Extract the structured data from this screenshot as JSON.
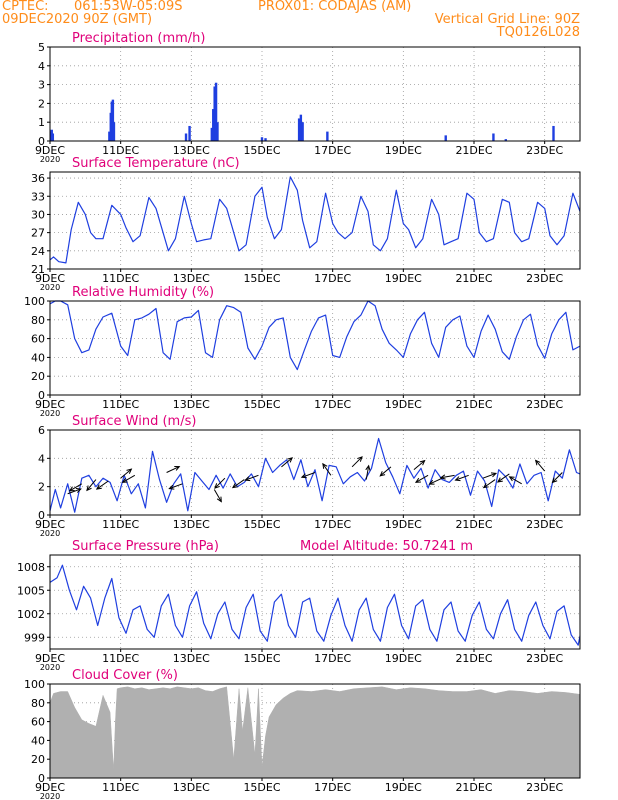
{
  "header": {
    "line1_left": "CPTEC:",
    "line1_mid": "061:53W-05:09S",
    "line1_right": "PROX01: CODAJAS (AM)",
    "line2_left": "09DEC2020 90Z (GMT)",
    "line2_right": "Vertical Grid Line: 90Z",
    "line3_right": "TQ0126L028"
  },
  "colors": {
    "header_text": "#ff8c1a",
    "panel_title": "#e0007a",
    "series": "#1f3fe0",
    "cloud": "#b0b0b0",
    "wind_vector": "#000000",
    "grid": "#999999"
  },
  "x_axis": {
    "ticks": [
      "9DEC",
      "11DEC",
      "13DEC",
      "15DEC",
      "17DEC",
      "19DEC",
      "21DEC",
      "23DEC"
    ],
    "tick_days": [
      0,
      2,
      4,
      6,
      8,
      10,
      12,
      14
    ],
    "start_year_label": "2020",
    "range_days": [
      0,
      15
    ]
  },
  "chart_data": [
    {
      "id": "precip",
      "type": "bar",
      "title": "Precipitation (mm/h)",
      "ylim": [
        0,
        5
      ],
      "yticks": [
        0,
        1,
        2,
        3,
        4,
        5
      ],
      "grid": true,
      "x_unit": "days since 09DEC2020 00Z",
      "x": [
        0.02,
        0.05,
        0.08,
        1.68,
        1.72,
        1.75,
        1.78,
        1.81,
        3.85,
        3.95,
        4.58,
        4.62,
        4.66,
        4.7,
        4.74,
        6.0,
        6.1,
        7.05,
        7.1,
        7.15,
        7.85,
        11.2,
        12.55,
        12.9,
        14.25
      ],
      "values": [
        0.5,
        0.6,
        0.4,
        0.5,
        1.5,
        2.1,
        2.2,
        1.0,
        0.4,
        0.8,
        0.7,
        1.7,
        2.9,
        3.1,
        1.0,
        0.2,
        0.15,
        1.2,
        1.4,
        1.0,
        0.5,
        0.3,
        0.4,
        0.1,
        0.8
      ]
    },
    {
      "id": "temp",
      "type": "line",
      "title": "Surface Temperature (nC)",
      "ylim": [
        21,
        37
      ],
      "yticks": [
        21,
        24,
        27,
        30,
        33,
        36
      ],
      "grid": true,
      "x": [
        0,
        0.1,
        0.25,
        0.45,
        0.6,
        0.8,
        1.0,
        1.15,
        1.3,
        1.5,
        1.75,
        2.0,
        2.15,
        2.35,
        2.55,
        2.8,
        3.0,
        3.15,
        3.35,
        3.55,
        3.8,
        4.0,
        4.15,
        4.35,
        4.55,
        4.8,
        5.0,
        5.15,
        5.35,
        5.55,
        5.8,
        6.0,
        6.15,
        6.35,
        6.55,
        6.8,
        7.0,
        7.15,
        7.35,
        7.55,
        7.8,
        8.0,
        8.15,
        8.35,
        8.55,
        8.8,
        9.0,
        9.15,
        9.35,
        9.55,
        9.8,
        10.0,
        10.15,
        10.35,
        10.55,
        10.8,
        11.0,
        11.15,
        11.35,
        11.55,
        11.8,
        12.0,
        12.15,
        12.35,
        12.55,
        12.8,
        13.0,
        13.15,
        13.35,
        13.55,
        13.8,
        14.0,
        14.15,
        14.35,
        14.55,
        14.8,
        15.0
      ],
      "values": [
        22.5,
        23.0,
        22.2,
        22.0,
        27.5,
        32.0,
        30.0,
        27.0,
        26.0,
        26.0,
        31.5,
        30.0,
        27.8,
        25.5,
        26.5,
        32.8,
        31.0,
        28.0,
        24.0,
        26.0,
        33.0,
        28.5,
        25.5,
        25.8,
        26.0,
        32.5,
        31.0,
        28.0,
        24.0,
        25.0,
        33.0,
        34.5,
        29.5,
        26.0,
        27.5,
        36.2,
        34.0,
        29.0,
        24.5,
        25.5,
        33.5,
        28.5,
        27.0,
        26.0,
        27.0,
        33.0,
        30.5,
        25.0,
        24.0,
        26.0,
        34.0,
        28.5,
        27.5,
        24.5,
        26.0,
        32.5,
        30.0,
        25.0,
        25.5,
        26.0,
        33.5,
        32.5,
        27.0,
        25.5,
        26.0,
        32.5,
        32.0,
        27.0,
        25.5,
        26.0,
        32.0,
        31.0,
        26.5,
        25.0,
        26.5,
        33.5,
        30.5
      ]
    },
    {
      "id": "rh",
      "type": "line",
      "title": "Relative Humidity (%)",
      "ylim": [
        0,
        100
      ],
      "yticks": [
        0,
        20,
        40,
        60,
        80,
        100
      ],
      "grid": true,
      "x": [
        0,
        0.15,
        0.3,
        0.5,
        0.7,
        0.9,
        1.1,
        1.3,
        1.5,
        1.75,
        2.0,
        2.2,
        2.4,
        2.6,
        2.8,
        3.0,
        3.2,
        3.4,
        3.6,
        3.8,
        4.0,
        4.2,
        4.4,
        4.6,
        4.8,
        5.0,
        5.2,
        5.4,
        5.6,
        5.8,
        6.0,
        6.2,
        6.4,
        6.6,
        6.8,
        7.0,
        7.2,
        7.4,
        7.6,
        7.8,
        8.0,
        8.2,
        8.4,
        8.6,
        8.8,
        9.0,
        9.2,
        9.4,
        9.6,
        9.8,
        10.0,
        10.2,
        10.4,
        10.6,
        10.8,
        11.0,
        11.2,
        11.4,
        11.6,
        11.8,
        12.0,
        12.2,
        12.4,
        12.6,
        12.8,
        13.0,
        13.2,
        13.4,
        13.6,
        13.8,
        14.0,
        14.2,
        14.4,
        14.6,
        14.8,
        15.0
      ],
      "values": [
        97,
        100,
        100,
        96,
        60,
        45,
        48,
        70,
        83,
        87,
        52,
        42,
        80,
        82,
        86,
        92,
        45,
        38,
        78,
        82,
        83,
        90,
        45,
        40,
        80,
        95,
        93,
        88,
        50,
        38,
        52,
        72,
        80,
        82,
        40,
        27,
        48,
        68,
        82,
        85,
        42,
        40,
        62,
        78,
        85,
        100,
        95,
        70,
        55,
        48,
        40,
        65,
        80,
        88,
        55,
        40,
        72,
        80,
        84,
        52,
        40,
        68,
        85,
        70,
        46,
        38,
        62,
        80,
        86,
        53,
        39,
        65,
        80,
        88,
        48,
        52
      ]
    },
    {
      "id": "wind",
      "type": "line",
      "title": "Surface Wind (m/s)",
      "ylim": [
        0,
        6
      ],
      "yticks": [
        0,
        2,
        4,
        6
      ],
      "grid": true,
      "x": [
        0,
        0.15,
        0.3,
        0.5,
        0.7,
        0.9,
        1.1,
        1.3,
        1.5,
        1.7,
        1.9,
        2.1,
        2.3,
        2.5,
        2.7,
        2.9,
        3.1,
        3.3,
        3.5,
        3.7,
        3.9,
        4.1,
        4.3,
        4.5,
        4.7,
        4.9,
        5.1,
        5.3,
        5.5,
        5.7,
        5.9,
        6.1,
        6.3,
        6.5,
        6.7,
        6.9,
        7.1,
        7.3,
        7.5,
        7.7,
        7.9,
        8.1,
        8.3,
        8.5,
        8.7,
        8.9,
        9.1,
        9.3,
        9.5,
        9.7,
        9.9,
        10.1,
        10.3,
        10.5,
        10.7,
        10.9,
        11.1,
        11.3,
        11.5,
        11.7,
        11.9,
        12.1,
        12.3,
        12.5,
        12.7,
        12.9,
        13.1,
        13.3,
        13.5,
        13.7,
        13.9,
        14.1,
        14.3,
        14.5,
        14.7,
        14.9,
        15.0
      ],
      "values": [
        0.3,
        1.8,
        0.5,
        2.2,
        0.2,
        2.6,
        2.8,
        2.0,
        2.6,
        2.3,
        1.0,
        2.8,
        1.5,
        2.2,
        0.5,
        4.5,
        2.5,
        0.9,
        2.2,
        2.9,
        0.3,
        3.0,
        2.4,
        1.8,
        2.8,
        1.9,
        2.9,
        2.0,
        2.3,
        2.9,
        2.0,
        4.0,
        3.0,
        3.5,
        3.9,
        2.5,
        3.9,
        2.0,
        3.2,
        1.0,
        3.5,
        3.4,
        2.2,
        2.7,
        3.0,
        2.4,
        3.3,
        5.4,
        3.7,
        2.7,
        1.5,
        3.5,
        2.6,
        3.3,
        1.9,
        3.2,
        2.5,
        2.3,
        2.8,
        3.1,
        1.4,
        3.1,
        2.4,
        0.6,
        3.2,
        2.7,
        1.9,
        3.6,
        2.2,
        2.8,
        3.0,
        1.0,
        3.1,
        2.6,
        4.6,
        3.0,
        2.9
      ]
    },
    {
      "id": "pres",
      "type": "line",
      "title": "Surface Pressure (hPa)",
      "title_right": "Model Altitude: 50.7241 m",
      "ylim": [
        997.5,
        1009.5
      ],
      "yticks": [
        999,
        1002,
        1005,
        1008
      ],
      "grid": true,
      "x": [
        0,
        0.2,
        0.35,
        0.55,
        0.75,
        0.95,
        1.15,
        1.35,
        1.55,
        1.75,
        1.95,
        2.15,
        2.35,
        2.55,
        2.75,
        2.95,
        3.15,
        3.35,
        3.55,
        3.75,
        3.95,
        4.15,
        4.35,
        4.55,
        4.75,
        4.95,
        5.15,
        5.35,
        5.55,
        5.75,
        5.95,
        6.15,
        6.35,
        6.55,
        6.75,
        6.95,
        7.15,
        7.35,
        7.55,
        7.75,
        7.95,
        8.15,
        8.35,
        8.55,
        8.75,
        8.95,
        9.15,
        9.35,
        9.55,
        9.75,
        9.95,
        10.15,
        10.35,
        10.55,
        10.75,
        10.95,
        11.15,
        11.35,
        11.55,
        11.75,
        11.95,
        12.15,
        12.35,
        12.55,
        12.75,
        12.95,
        13.15,
        13.35,
        13.55,
        13.75,
        13.95,
        14.15,
        14.35,
        14.55,
        14.75,
        14.95,
        15.0
      ],
      "values": [
        1006.0,
        1006.6,
        1008.2,
        1005.0,
        1002.5,
        1005.5,
        1004.0,
        1000.5,
        1004.0,
        1006.5,
        1001.5,
        999.5,
        1002.5,
        1003.0,
        1000.0,
        999.0,
        1003.0,
        1004.5,
        1000.5,
        999.0,
        1003.0,
        1004.8,
        1000.8,
        998.8,
        1002.0,
        1003.5,
        1000.0,
        998.8,
        1002.8,
        1004.5,
        999.8,
        998.5,
        1003.5,
        1004.5,
        1000.5,
        999.0,
        1003.5,
        1004.0,
        999.8,
        998.5,
        1001.8,
        1004.0,
        1000.5,
        998.5,
        1002.5,
        1004.0,
        1000.0,
        998.5,
        1002.8,
        1004.5,
        1000.5,
        998.8,
        1003.0,
        1003.8,
        1000.0,
        998.5,
        1002.5,
        1003.5,
        999.8,
        998.5,
        1001.8,
        1003.5,
        1000.0,
        998.8,
        1002.0,
        1003.8,
        1000.0,
        998.5,
        1001.8,
        1003.5,
        1000.5,
        998.8,
        1002.3,
        1003.0,
        999.3,
        998.0,
        999.2
      ]
    },
    {
      "id": "cloud",
      "type": "area",
      "title": "Cloud Cover (%)",
      "ylim": [
        0,
        100
      ],
      "yticks": [
        0,
        20,
        40,
        60,
        80,
        100
      ],
      "grid": true,
      "x": [
        0,
        0.1,
        0.3,
        0.5,
        0.7,
        0.9,
        1.1,
        1.3,
        1.5,
        1.7,
        1.8,
        1.85,
        1.9,
        2.0,
        2.2,
        2.4,
        2.6,
        2.8,
        3.0,
        3.2,
        3.4,
        3.6,
        3.8,
        4.0,
        4.2,
        4.4,
        4.6,
        4.8,
        5.0,
        5.2,
        5.35,
        5.45,
        5.6,
        5.8,
        5.9,
        6.0,
        6.1,
        6.2,
        6.4,
        6.6,
        6.8,
        7.0,
        7.4,
        7.8,
        8.2,
        8.6,
        9.0,
        9.4,
        9.8,
        10.2,
        10.6,
        11.0,
        11.4,
        11.8,
        12.2,
        12.6,
        13.0,
        13.4,
        13.8,
        14.2,
        14.6,
        15.0
      ],
      "values": [
        80,
        90,
        92,
        92,
        75,
        62,
        58,
        55,
        88,
        70,
        8,
        60,
        95,
        96,
        97,
        95,
        96,
        94,
        95,
        96,
        95,
        97,
        96,
        95,
        96,
        93,
        92,
        95,
        97,
        20,
        95,
        50,
        96,
        25,
        95,
        12,
        45,
        65,
        78,
        85,
        90,
        93,
        92,
        94,
        92,
        95,
        96,
        97,
        94,
        96,
        95,
        93,
        92,
        92,
        94,
        90,
        93,
        92,
        90,
        92,
        91,
        89
      ]
    }
  ],
  "wind_vectors": {
    "x": [
      0.5,
      0.9,
      1.3,
      1.65,
      2.0,
      2.4,
      3.3,
      3.75,
      4.65,
      4.95,
      5.5,
      5.9,
      6.55,
      7.5,
      7.95,
      8.55,
      8.95,
      9.65,
      10.3,
      10.7,
      11.1,
      11.45,
      11.85,
      12.25,
      12.6,
      13.0,
      13.35,
      14.0,
      14.5
    ],
    "dir_deg": [
      20,
      210,
      230,
      215,
      40,
      210,
      25,
      200,
      300,
      225,
      215,
      200,
      40,
      200,
      125,
      45,
      80,
      220,
      40,
      210,
      205,
      190,
      200,
      20,
      215,
      215,
      150,
      130,
      225
    ],
    "speed": [
      1.5,
      2.2,
      2.5,
      2.4,
      2.6,
      2.8,
      3.0,
      2.2,
      1.8,
      2.6,
      2.5,
      2.8,
      3.4,
      3.0,
      2.8,
      3.4,
      2.5,
      3.4,
      3.2,
      2.8,
      2.6,
      2.8,
      2.8,
      2.6,
      2.5,
      2.9,
      2.2,
      3.1,
      3.0
    ]
  }
}
